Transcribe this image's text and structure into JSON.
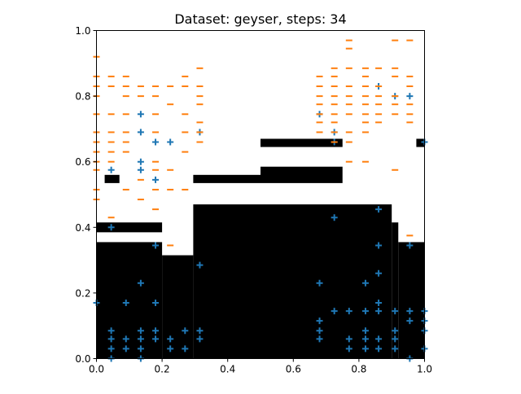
{
  "chart_data": {
    "type": "scatter",
    "title": "Dataset: geyser, steps: 34",
    "xlabel": "",
    "ylabel": "",
    "xlim": [
      0,
      1
    ],
    "ylim": [
      0,
      1
    ],
    "xticks": [
      "0.0",
      "0.2",
      "0.4",
      "0.6",
      "0.8",
      "1.0"
    ],
    "yticks": [
      "0.0",
      "0.2",
      "0.4",
      "0.6",
      "0.8",
      "1.0"
    ],
    "grid": false,
    "colors": {
      "plus": "#1f77b4",
      "minus": "#ff7f0e",
      "region": "#000000"
    },
    "decision_region": [
      {
        "x0": 0.0,
        "x1": 0.2,
        "y0": 0.0,
        "y1": 0.355
      },
      {
        "x0": 0.2,
        "x1": 0.295,
        "y0": 0.0,
        "y1": 0.315
      },
      {
        "x0": 0.295,
        "x1": 0.9,
        "y0": 0.0,
        "y1": 0.47
      },
      {
        "x0": 0.9,
        "x1": 0.92,
        "y0": 0.0,
        "y1": 0.415
      },
      {
        "x0": 0.92,
        "x1": 1.0,
        "y0": 0.0,
        "y1": 0.355
      },
      {
        "x0": 0.0,
        "x1": 0.2,
        "y0": 0.385,
        "y1": 0.415
      },
      {
        "x0": 0.025,
        "x1": 0.07,
        "y0": 0.535,
        "y1": 0.56
      },
      {
        "x0": 0.295,
        "x1": 0.5,
        "y0": 0.535,
        "y1": 0.56
      },
      {
        "x0": 0.5,
        "x1": 0.75,
        "y0": 0.535,
        "y1": 0.585
      },
      {
        "x0": 0.5,
        "x1": 0.75,
        "y0": 0.645,
        "y1": 0.67
      },
      {
        "x0": 0.975,
        "x1": 1.0,
        "y0": 0.645,
        "y1": 0.67
      }
    ],
    "series": [
      {
        "name": "+",
        "points": [
          [
            0.045,
            0.575
          ],
          [
            0.045,
            0.4
          ],
          [
            0.135,
            0.745
          ],
          [
            0.135,
            0.69
          ],
          [
            0.135,
            0.6
          ],
          [
            0.135,
            0.575
          ],
          [
            0.18,
            0.66
          ],
          [
            0.18,
            0.545
          ],
          [
            0.225,
            0.66
          ],
          [
            0.315,
            0.69
          ],
          [
            0.18,
            0.345
          ],
          [
            0.315,
            0.285
          ],
          [
            0.135,
            0.23
          ],
          [
            0.09,
            0.17
          ],
          [
            0.18,
            0.17
          ],
          [
            0.0,
            0.17
          ],
          [
            0.045,
            0.085
          ],
          [
            0.045,
            0.06
          ],
          [
            0.045,
            0.03
          ],
          [
            0.045,
            0.0
          ],
          [
            0.09,
            0.06
          ],
          [
            0.09,
            0.03
          ],
          [
            0.135,
            0.085
          ],
          [
            0.135,
            0.06
          ],
          [
            0.135,
            0.03
          ],
          [
            0.135,
            0.0
          ],
          [
            0.18,
            0.085
          ],
          [
            0.18,
            0.06
          ],
          [
            0.225,
            0.06
          ],
          [
            0.225,
            0.03
          ],
          [
            0.27,
            0.085
          ],
          [
            0.27,
            0.03
          ],
          [
            0.315,
            0.085
          ],
          [
            0.315,
            0.06
          ],
          [
            0.68,
            0.745
          ],
          [
            0.725,
            0.69
          ],
          [
            0.725,
            0.66
          ],
          [
            0.86,
            0.83
          ],
          [
            0.91,
            0.8
          ],
          [
            0.955,
            0.8
          ],
          [
            1.0,
            0.66
          ],
          [
            0.725,
            0.43
          ],
          [
            0.86,
            0.455
          ],
          [
            0.86,
            0.345
          ],
          [
            0.955,
            0.345
          ],
          [
            0.68,
            0.23
          ],
          [
            0.82,
            0.23
          ],
          [
            0.86,
            0.26
          ],
          [
            0.86,
            0.17
          ],
          [
            0.725,
            0.145
          ],
          [
            0.77,
            0.145
          ],
          [
            0.82,
            0.145
          ],
          [
            0.86,
            0.145
          ],
          [
            0.91,
            0.145
          ],
          [
            0.955,
            0.145
          ],
          [
            1.0,
            0.145
          ],
          [
            0.68,
            0.115
          ],
          [
            0.955,
            0.115
          ],
          [
            1.0,
            0.115
          ],
          [
            0.68,
            0.085
          ],
          [
            0.68,
            0.06
          ],
          [
            0.77,
            0.06
          ],
          [
            0.82,
            0.085
          ],
          [
            0.82,
            0.06
          ],
          [
            0.86,
            0.06
          ],
          [
            0.91,
            0.085
          ],
          [
            0.91,
            0.06
          ],
          [
            1.0,
            0.085
          ],
          [
            0.77,
            0.03
          ],
          [
            0.82,
            0.03
          ],
          [
            0.86,
            0.03
          ],
          [
            0.91,
            0.03
          ],
          [
            0.955,
            0.0
          ],
          [
            1.0,
            0.03
          ]
        ]
      },
      {
        "name": "−",
        "points": [
          [
            0.0,
            0.92
          ],
          [
            0.0,
            0.86
          ],
          [
            0.0,
            0.83
          ],
          [
            0.0,
            0.8
          ],
          [
            0.0,
            0.745
          ],
          [
            0.0,
            0.69
          ],
          [
            0.0,
            0.66
          ],
          [
            0.0,
            0.63
          ],
          [
            0.0,
            0.6
          ],
          [
            0.0,
            0.575
          ],
          [
            0.0,
            0.515
          ],
          [
            0.0,
            0.485
          ],
          [
            0.045,
            0.86
          ],
          [
            0.045,
            0.83
          ],
          [
            0.045,
            0.745
          ],
          [
            0.045,
            0.69
          ],
          [
            0.045,
            0.66
          ],
          [
            0.045,
            0.63
          ],
          [
            0.045,
            0.6
          ],
          [
            0.045,
            0.43
          ],
          [
            0.09,
            0.86
          ],
          [
            0.09,
            0.83
          ],
          [
            0.09,
            0.8
          ],
          [
            0.09,
            0.745
          ],
          [
            0.09,
            0.69
          ],
          [
            0.09,
            0.66
          ],
          [
            0.09,
            0.63
          ],
          [
            0.09,
            0.515
          ],
          [
            0.135,
            0.83
          ],
          [
            0.135,
            0.8
          ],
          [
            0.135,
            0.545
          ],
          [
            0.135,
            0.485
          ],
          [
            0.18,
            0.83
          ],
          [
            0.18,
            0.8
          ],
          [
            0.18,
            0.745
          ],
          [
            0.18,
            0.69
          ],
          [
            0.18,
            0.6
          ],
          [
            0.18,
            0.575
          ],
          [
            0.18,
            0.515
          ],
          [
            0.18,
            0.455
          ],
          [
            0.225,
            0.83
          ],
          [
            0.225,
            0.775
          ],
          [
            0.225,
            0.575
          ],
          [
            0.225,
            0.515
          ],
          [
            0.225,
            0.345
          ],
          [
            0.27,
            0.86
          ],
          [
            0.27,
            0.83
          ],
          [
            0.27,
            0.745
          ],
          [
            0.27,
            0.69
          ],
          [
            0.27,
            0.63
          ],
          [
            0.27,
            0.515
          ],
          [
            0.315,
            0.885
          ],
          [
            0.315,
            0.83
          ],
          [
            0.315,
            0.8
          ],
          [
            0.315,
            0.775
          ],
          [
            0.315,
            0.72
          ],
          [
            0.315,
            0.69
          ],
          [
            0.315,
            0.66
          ],
          [
            0.68,
            0.86
          ],
          [
            0.68,
            0.83
          ],
          [
            0.68,
            0.8
          ],
          [
            0.68,
            0.775
          ],
          [
            0.68,
            0.745
          ],
          [
            0.68,
            0.72
          ],
          [
            0.68,
            0.69
          ],
          [
            0.725,
            0.885
          ],
          [
            0.725,
            0.86
          ],
          [
            0.725,
            0.83
          ],
          [
            0.725,
            0.8
          ],
          [
            0.725,
            0.775
          ],
          [
            0.725,
            0.745
          ],
          [
            0.725,
            0.72
          ],
          [
            0.725,
            0.69
          ],
          [
            0.725,
            0.66
          ],
          [
            0.77,
            0.97
          ],
          [
            0.77,
            0.945
          ],
          [
            0.77,
            0.885
          ],
          [
            0.77,
            0.83
          ],
          [
            0.77,
            0.8
          ],
          [
            0.77,
            0.775
          ],
          [
            0.77,
            0.745
          ],
          [
            0.77,
            0.69
          ],
          [
            0.77,
            0.66
          ],
          [
            0.77,
            0.6
          ],
          [
            0.82,
            0.885
          ],
          [
            0.82,
            0.86
          ],
          [
            0.82,
            0.83
          ],
          [
            0.82,
            0.8
          ],
          [
            0.82,
            0.775
          ],
          [
            0.82,
            0.745
          ],
          [
            0.82,
            0.72
          ],
          [
            0.82,
            0.69
          ],
          [
            0.82,
            0.6
          ],
          [
            0.86,
            0.885
          ],
          [
            0.86,
            0.83
          ],
          [
            0.86,
            0.8
          ],
          [
            0.86,
            0.775
          ],
          [
            0.86,
            0.745
          ],
          [
            0.86,
            0.72
          ],
          [
            0.91,
            0.97
          ],
          [
            0.91,
            0.885
          ],
          [
            0.91,
            0.86
          ],
          [
            0.91,
            0.8
          ],
          [
            0.91,
            0.775
          ],
          [
            0.91,
            0.745
          ],
          [
            0.91,
            0.575
          ],
          [
            0.955,
            0.97
          ],
          [
            0.955,
            0.86
          ],
          [
            0.955,
            0.83
          ],
          [
            0.955,
            0.775
          ],
          [
            0.955,
            0.745
          ],
          [
            0.955,
            0.72
          ],
          [
            0.955,
            0.375
          ]
        ]
      }
    ]
  }
}
